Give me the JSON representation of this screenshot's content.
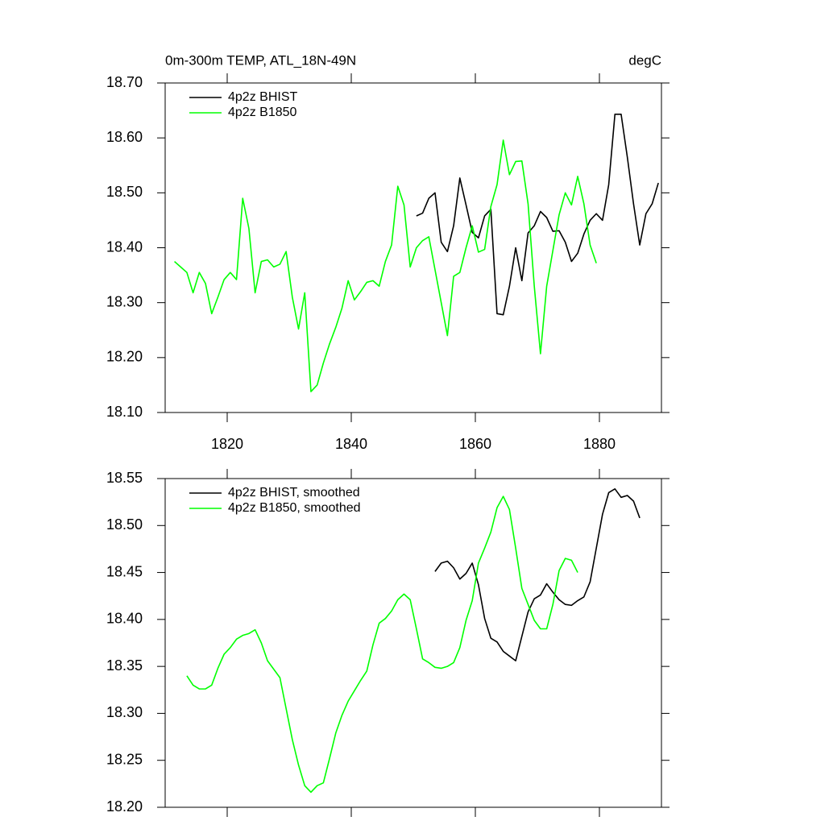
{
  "chart_data": [
    {
      "type": "line",
      "title": "0m-300m TEMP, ATL_18N-49N",
      "units": "degC",
      "xlim": [
        1810,
        1890
      ],
      "xticks": [
        1820,
        1840,
        1860,
        1880
      ],
      "ylim": [
        18.1,
        18.7
      ],
      "yticks": [
        {
          "value": 18.1,
          "label": "18.10"
        },
        {
          "value": 18.2,
          "label": "18.20"
        },
        {
          "value": 18.3,
          "label": "18.30"
        },
        {
          "value": 18.4,
          "label": "18.40"
        },
        {
          "value": 18.5,
          "label": "18.50"
        },
        {
          "value": 18.6,
          "label": "18.60"
        },
        {
          "value": 18.7,
          "label": "18.70"
        }
      ],
      "legend": "top-left",
      "series": [
        {
          "name": "4p2z BHIST",
          "color": "#000000",
          "x": [
            1850.5,
            1851.5,
            1852.5,
            1853.5,
            1854.5,
            1855.5,
            1856.5,
            1857.5,
            1858.5,
            1859.5,
            1860.5,
            1861.5,
            1862.5,
            1863.5,
            1864.5,
            1865.5,
            1866.5,
            1867.5,
            1868.5,
            1869.5,
            1870.5,
            1871.5,
            1872.5,
            1873.5,
            1874.5,
            1875.5,
            1876.5,
            1877.5,
            1878.5,
            1879.5,
            1880.5,
            1881.5,
            1882.5,
            1883.5,
            1884.5,
            1885.5,
            1886.5,
            1887.5,
            1888.5,
            1889.5
          ],
          "values": [
            18.458,
            18.463,
            18.49,
            18.5,
            18.41,
            18.393,
            18.44,
            18.527,
            18.478,
            18.428,
            18.418,
            18.458,
            18.47,
            18.28,
            18.278,
            18.33,
            18.4,
            18.34,
            18.427,
            18.44,
            18.466,
            18.455,
            18.43,
            18.431,
            18.41,
            18.375,
            18.39,
            18.425,
            18.45,
            18.462,
            18.45,
            18.515,
            18.643,
            18.643,
            18.565,
            18.48,
            18.405,
            18.462,
            18.48,
            18.518
          ]
        },
        {
          "name": "4p2z B1850",
          "color": "#00ff00",
          "x": [
            1811.5,
            1812.5,
            1813.5,
            1814.5,
            1815.5,
            1816.5,
            1817.5,
            1818.5,
            1819.5,
            1820.5,
            1821.5,
            1822.5,
            1823.5,
            1824.5,
            1825.5,
            1826.5,
            1827.5,
            1828.5,
            1829.5,
            1830.5,
            1831.5,
            1832.5,
            1833.5,
            1834.5,
            1835.5,
            1836.5,
            1837.5,
            1838.5,
            1839.5,
            1840.5,
            1841.5,
            1842.5,
            1843.5,
            1844.5,
            1845.5,
            1846.5,
            1847.5,
            1848.5,
            1849.5,
            1850.5,
            1851.5,
            1852.5,
            1853.5,
            1854.5,
            1855.5,
            1856.5,
            1857.5,
            1858.5,
            1859.5,
            1860.5,
            1861.5,
            1862.5,
            1863.5,
            1864.5,
            1865.5,
            1866.5,
            1867.5,
            1868.5,
            1869.5,
            1870.5,
            1871.5,
            1872.5,
            1873.5,
            1874.5,
            1875.5,
            1876.5,
            1877.5,
            1878.5,
            1879.5
          ],
          "values": [
            18.375,
            18.365,
            18.355,
            18.318,
            18.355,
            18.335,
            18.28,
            18.31,
            18.342,
            18.355,
            18.342,
            18.49,
            18.435,
            18.318,
            18.375,
            18.378,
            18.365,
            18.37,
            18.393,
            18.31,
            18.252,
            18.318,
            18.138,
            18.15,
            18.19,
            18.225,
            18.255,
            18.29,
            18.34,
            18.305,
            18.32,
            18.337,
            18.34,
            18.33,
            18.375,
            18.405,
            18.512,
            18.478,
            18.365,
            18.4,
            18.413,
            18.42,
            18.36,
            18.3,
            18.24,
            18.348,
            18.355,
            18.4,
            18.44,
            18.392,
            18.397,
            18.475,
            18.515,
            18.596,
            18.533,
            18.557,
            18.558,
            18.48,
            18.33,
            18.207,
            18.33,
            18.395,
            18.46,
            18.5,
            18.478,
            18.53,
            18.48,
            18.405,
            18.372
          ]
        }
      ]
    },
    {
      "type": "line",
      "xlim": [
        1810,
        1890
      ],
      "xticks": [
        1820,
        1840,
        1860,
        1880
      ],
      "ylim": [
        18.2,
        18.55
      ],
      "yticks": [
        {
          "value": 18.2,
          "label": "18.20"
        },
        {
          "value": 18.25,
          "label": "18.25"
        },
        {
          "value": 18.3,
          "label": "18.30"
        },
        {
          "value": 18.35,
          "label": "18.35"
        },
        {
          "value": 18.4,
          "label": "18.40"
        },
        {
          "value": 18.45,
          "label": "18.45"
        },
        {
          "value": 18.5,
          "label": "18.50"
        },
        {
          "value": 18.55,
          "label": "18.55"
        }
      ],
      "legend": "top-left",
      "series": [
        {
          "name": "4p2z BHIST, smoothed",
          "color": "#000000",
          "x": [
            1853.5,
            1854.5,
            1855.5,
            1856.5,
            1857.5,
            1858.5,
            1859.5,
            1860.5,
            1861.5,
            1862.5,
            1863.5,
            1864.5,
            1865.5,
            1866.5,
            1867.5,
            1868.5,
            1869.5,
            1870.5,
            1871.5,
            1872.5,
            1873.5,
            1874.5,
            1875.5,
            1876.5,
            1877.5,
            1878.5,
            1879.5,
            1880.5,
            1881.5,
            1882.5,
            1883.5,
            1884.5,
            1885.5,
            1886.5
          ],
          "values": [
            18.451,
            18.46,
            18.462,
            18.455,
            18.443,
            18.449,
            18.46,
            18.437,
            18.401,
            18.38,
            18.376,
            18.366,
            18.361,
            18.356,
            18.382,
            18.408,
            18.422,
            18.426,
            18.438,
            18.429,
            18.421,
            18.416,
            18.415,
            18.42,
            18.424,
            18.44,
            18.476,
            18.512,
            18.535,
            18.539,
            18.53,
            18.532,
            18.526,
            18.508
          ]
        },
        {
          "name": "4p2z B1850, smoothed",
          "color": "#00ff00",
          "x": [
            1813.5,
            1814.5,
            1815.5,
            1816.5,
            1817.5,
            1818.5,
            1819.5,
            1820.5,
            1821.5,
            1822.5,
            1823.5,
            1824.5,
            1825.5,
            1826.5,
            1827.5,
            1828.5,
            1829.5,
            1830.5,
            1831.5,
            1832.5,
            1833.5,
            1834.5,
            1835.5,
            1836.5,
            1837.5,
            1838.5,
            1839.5,
            1840.5,
            1841.5,
            1842.5,
            1843.5,
            1844.5,
            1845.5,
            1846.5,
            1847.5,
            1848.5,
            1849.5,
            1850.5,
            1851.5,
            1852.5,
            1853.5,
            1854.5,
            1855.5,
            1856.5,
            1857.5,
            1858.5,
            1859.5,
            1860.5,
            1861.5,
            1862.5,
            1863.5,
            1864.5,
            1865.5,
            1866.5,
            1867.5,
            1868.5,
            1869.5,
            1870.5,
            1871.5,
            1872.5,
            1873.5,
            1874.5,
            1875.5,
            1876.5
          ],
          "values": [
            18.34,
            18.33,
            18.326,
            18.326,
            18.33,
            18.348,
            18.363,
            18.37,
            18.379,
            18.383,
            18.385,
            18.389,
            18.375,
            18.356,
            18.347,
            18.338,
            18.305,
            18.272,
            18.245,
            18.223,
            18.216,
            18.223,
            18.226,
            18.252,
            18.279,
            18.298,
            18.313,
            18.324,
            18.335,
            18.345,
            18.373,
            18.396,
            18.401,
            18.409,
            18.421,
            18.427,
            18.421,
            18.39,
            18.358,
            18.354,
            18.349,
            18.348,
            18.35,
            18.354,
            18.37,
            18.399,
            18.42,
            18.46,
            18.476,
            18.493,
            18.519,
            18.531,
            18.517,
            18.476,
            18.433,
            18.416,
            18.399,
            18.39,
            18.39,
            18.416,
            18.452,
            18.465,
            18.463,
            18.45
          ]
        }
      ]
    }
  ]
}
